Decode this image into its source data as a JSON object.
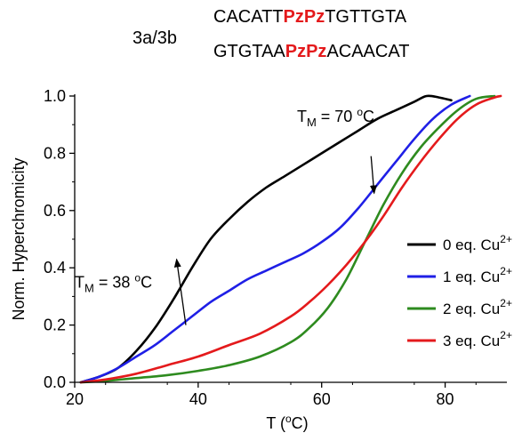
{
  "header": {
    "compound": "3a/3b",
    "strand1": [
      {
        "text": "CACATT",
        "highlight": false
      },
      {
        "text": "PzPz",
        "highlight": true
      },
      {
        "text": "TGTTGTA",
        "highlight": false
      }
    ],
    "strand2": [
      {
        "text": "GTGTAA",
        "highlight": false
      },
      {
        "text": "PzPz",
        "highlight": true
      },
      {
        "text": "ACAACAT",
        "highlight": false
      }
    ]
  },
  "colors": {
    "highlight": "#e41a1c"
  },
  "chart_data": {
    "type": "line",
    "title": "",
    "xlabel": "T (°C)",
    "ylabel": "Norm. Hyperchromicity",
    "xlim": [
      20,
      90
    ],
    "ylim": [
      0.0,
      1.0
    ],
    "xticks": [
      20,
      40,
      60,
      80
    ],
    "yticks": [
      0.0,
      0.2,
      0.4,
      0.6,
      0.8,
      1.0
    ],
    "xtick_labels": [
      "20",
      "40",
      "60",
      "80"
    ],
    "ytick_labels": [
      "0.0",
      "0.2",
      "0.4",
      "0.6",
      "0.8",
      "1.0"
    ],
    "grid": false,
    "legend_position": "center-right",
    "series": [
      {
        "name": "0 eq. Cu²⁺",
        "base": "0 eq. Cu",
        "sup": "2+",
        "color": "#000000",
        "x": [
          21,
          24,
          27,
          30,
          33,
          36,
          39,
          42,
          45,
          48,
          51,
          54,
          57,
          60,
          63,
          66,
          69,
          72,
          75,
          77,
          79,
          81
        ],
        "y": [
          0.0,
          0.02,
          0.05,
          0.11,
          0.19,
          0.29,
          0.4,
          0.5,
          0.57,
          0.63,
          0.68,
          0.72,
          0.76,
          0.8,
          0.84,
          0.88,
          0.92,
          0.95,
          0.98,
          1.0,
          0.995,
          0.985
        ]
      },
      {
        "name": "1 eq. Cu²⁺",
        "base": "1 eq. Cu",
        "sup": "2+",
        "color": "#1f1fe6",
        "x": [
          21,
          24,
          27,
          30,
          33,
          36,
          39,
          42,
          45,
          48,
          51,
          54,
          57,
          60,
          63,
          66,
          69,
          72,
          75,
          78,
          81,
          84
        ],
        "y": [
          0.0,
          0.02,
          0.05,
          0.09,
          0.13,
          0.18,
          0.23,
          0.28,
          0.32,
          0.36,
          0.39,
          0.42,
          0.45,
          0.49,
          0.54,
          0.61,
          0.69,
          0.77,
          0.85,
          0.92,
          0.97,
          1.0
        ]
      },
      {
        "name": "2 eq. Cu²⁺",
        "base": "2 eq. Cu",
        "sup": "2+",
        "color": "#2e8b1f",
        "x": [
          21,
          25,
          30,
          35,
          40,
          45,
          50,
          55,
          58,
          61,
          64,
          67,
          70,
          73,
          76,
          79,
          82,
          85,
          88
        ],
        "y": [
          0.0,
          0.005,
          0.015,
          0.025,
          0.04,
          0.06,
          0.09,
          0.14,
          0.19,
          0.26,
          0.36,
          0.49,
          0.62,
          0.73,
          0.82,
          0.89,
          0.95,
          0.99,
          1.0
        ]
      },
      {
        "name": "3 eq. Cu²⁺",
        "base": "3 eq. Cu",
        "sup": "2+",
        "color": "#e41a1c",
        "x": [
          21,
          25,
          30,
          35,
          40,
          45,
          50,
          55,
          58,
          61,
          64,
          67,
          70,
          73,
          76,
          79,
          82,
          85,
          88,
          89
        ],
        "y": [
          0.0,
          0.01,
          0.03,
          0.06,
          0.09,
          0.13,
          0.17,
          0.23,
          0.28,
          0.34,
          0.41,
          0.49,
          0.58,
          0.68,
          0.77,
          0.85,
          0.92,
          0.97,
          0.995,
          1.0
        ]
      }
    ],
    "annotations": [
      {
        "id": "tm70",
        "label": "70",
        "unit": "C",
        "text": "T_M = 70 °C",
        "tx": 68,
        "ty": 0.79,
        "ax": 56,
        "ay": 0.91,
        "hx": 68.5,
        "hy": 0.66
      },
      {
        "id": "tm38",
        "label": "38",
        "unit": "C",
        "text": "T_M = 38 °C",
        "tx": 38,
        "ty": 0.2,
        "ax": 20,
        "ay": 0.33,
        "hx": 36.5,
        "hy": 0.43
      }
    ]
  }
}
